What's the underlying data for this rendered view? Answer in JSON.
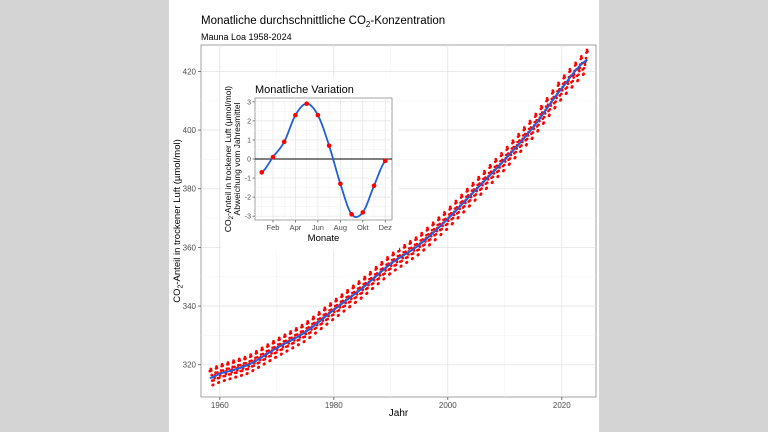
{
  "chart_data": [
    {
      "type": "line",
      "title_prefix": "Monatliche durchschnittliche CO",
      "title_sub": "2",
      "title_suffix": "-Konzentration",
      "subtitle": "Mauna Loa 1958-2024",
      "xlabel": "Jahr",
      "ylabel_prefix": "CO",
      "ylabel_sub": "2",
      "ylabel_suffix": "-Anteil in trockener Luft (µmol/mol)",
      "xlim": [
        1956.7,
        2026.0
      ],
      "ylim": [
        309.0,
        429.0
      ],
      "xticks": [
        1960,
        1980,
        2000,
        2020
      ],
      "yticks": [
        320,
        340,
        360,
        380,
        400,
        420
      ],
      "grid": true,
      "series": [
        {
          "role": "monthly-points",
          "color": "#ff0000",
          "x_start": 1958.25,
          "x_end": 2024.5,
          "step": 0.0833333,
          "trend": {
            "x": [
              1958,
              1960,
              1965,
              1970,
              1975,
              1980,
              1985,
              1990,
              1995,
              2000,
              2005,
              2010,
              2015,
              2020,
              2024.5
            ],
            "y": [
              315.3,
              317.0,
              320.0,
              325.7,
              331.1,
              338.7,
              346.1,
              354.4,
              360.9,
              369.7,
              379.8,
              389.9,
              401.0,
              414.2,
              424.0
            ]
          }
        },
        {
          "role": "smoothed-trend",
          "color": "#1f5fdd"
        }
      ]
    },
    {
      "type": "line",
      "title": "Monatliche Variation",
      "xlabel": "Monate",
      "ylabel_line1_prefix": "CO",
      "ylabel_line1_sub": "2",
      "ylabel_line1_suffix": "-Anteil in trockener Luft (µmol/mol)",
      "ylabel_line2": "Abweichung vom Jahresmittel",
      "xlim": [
        0.4,
        12.6
      ],
      "ylim": [
        -3.2,
        3.2
      ],
      "xticks": [
        {
          "value": 2,
          "label": "Feb"
        },
        {
          "value": 4,
          "label": "Apr"
        },
        {
          "value": 6,
          "label": "Jun"
        },
        {
          "value": 8,
          "label": "Aug"
        },
        {
          "value": 10,
          "label": "Okt"
        },
        {
          "value": 12,
          "label": "Dez"
        }
      ],
      "yticks": [
        -3,
        -2,
        -1,
        0,
        1,
        2,
        3
      ],
      "grid": true,
      "months": [
        1,
        2,
        3,
        4,
        5,
        6,
        7,
        8,
        9,
        10,
        11,
        12
      ],
      "values": [
        -0.7,
        0.1,
        0.9,
        2.3,
        2.9,
        2.3,
        0.7,
        -1.3,
        -2.9,
        -2.8,
        -1.4,
        -0.1
      ],
      "point_color": "#ff0000",
      "curve_color": "#1f5fdd"
    }
  ]
}
